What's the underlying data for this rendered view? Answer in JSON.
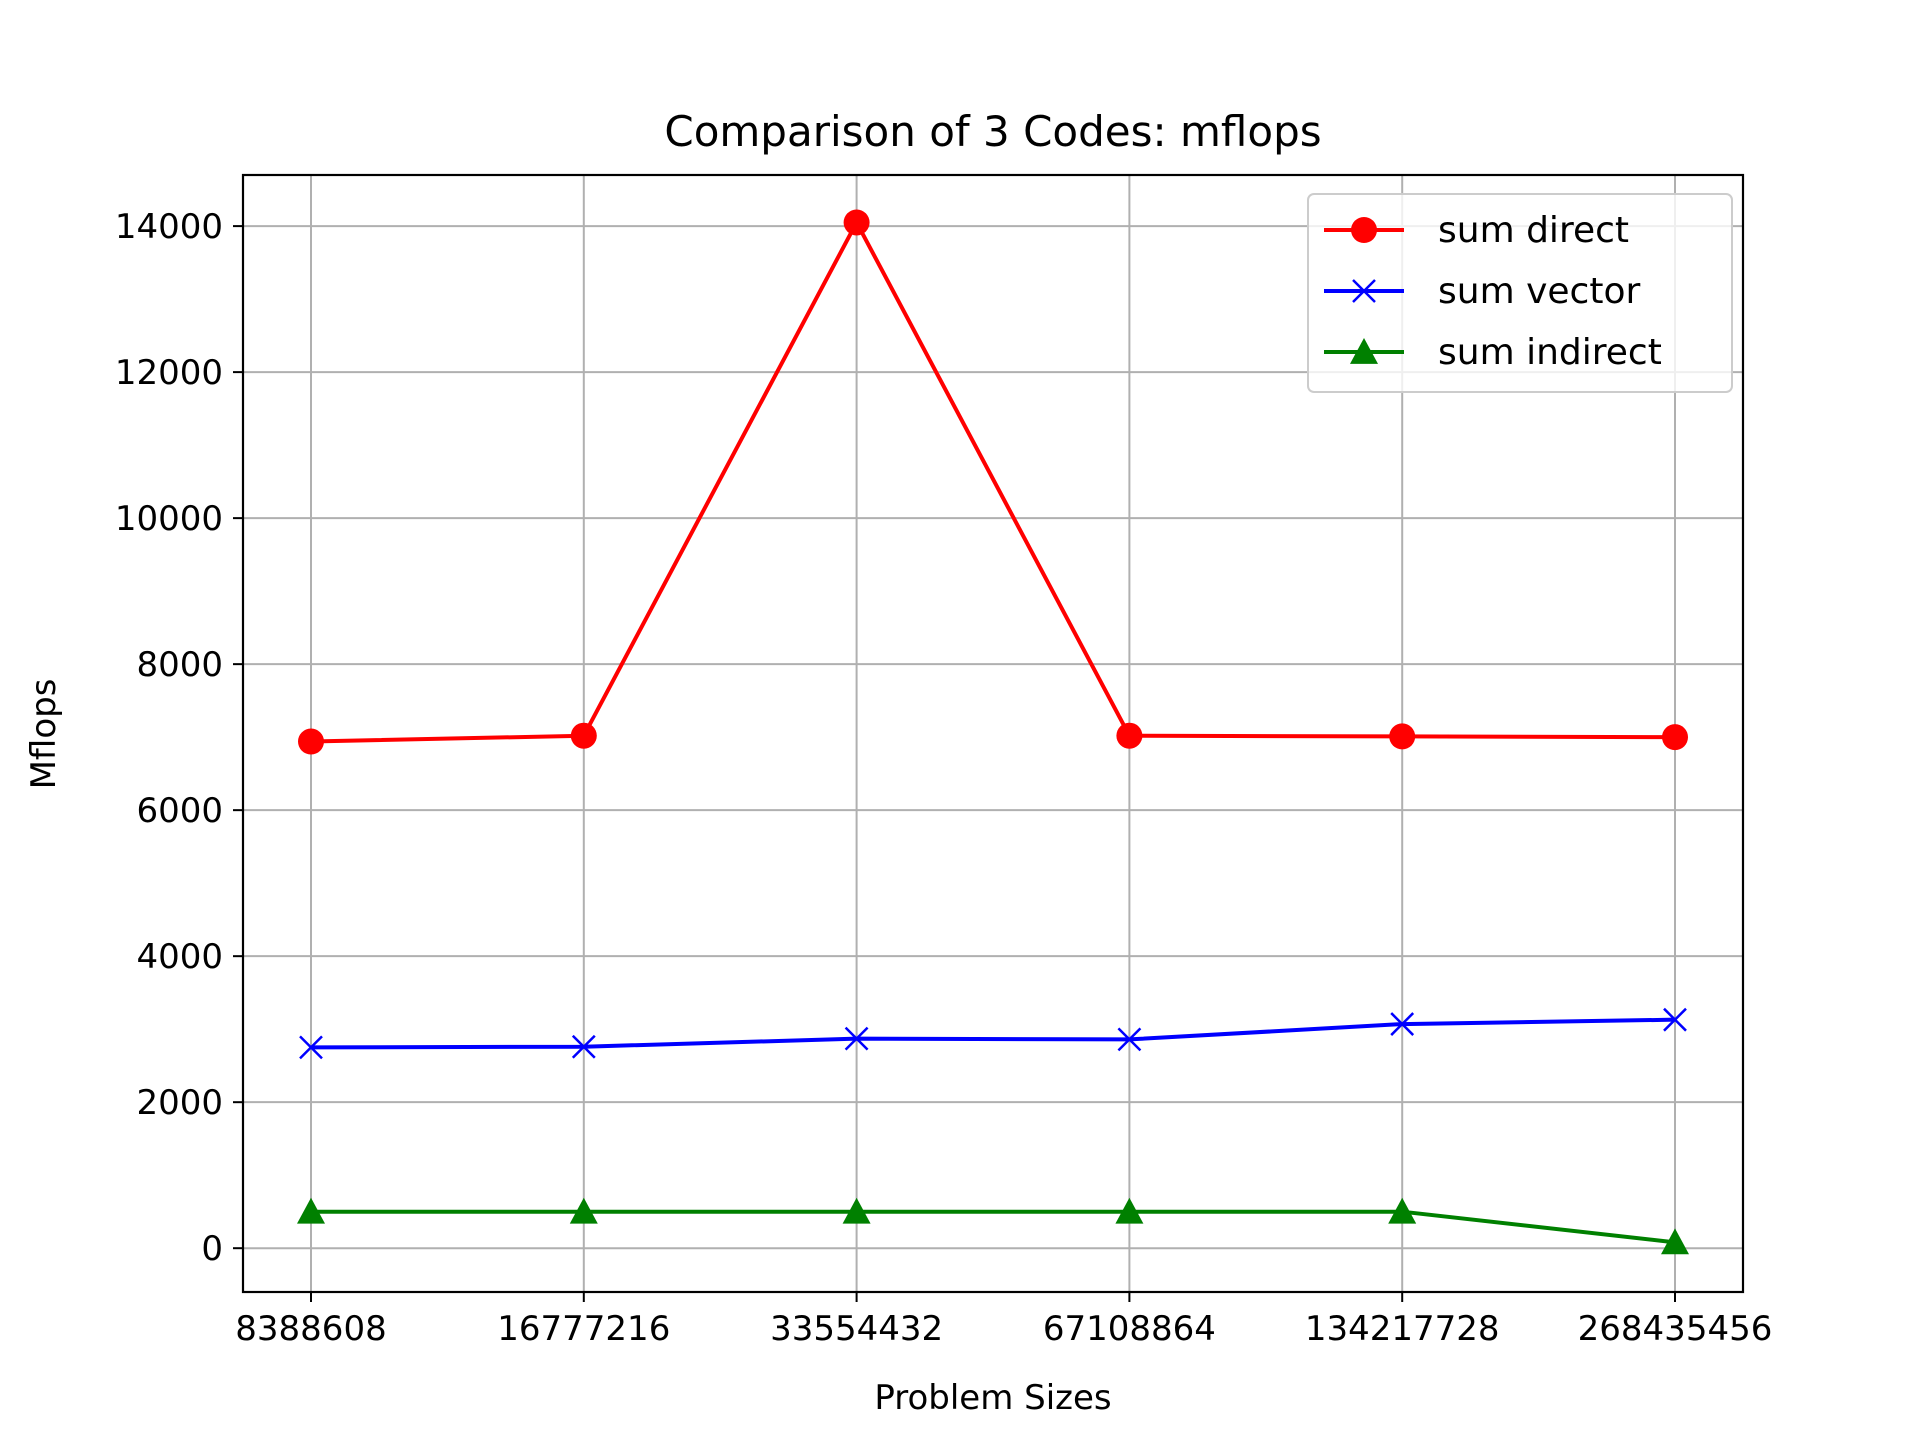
{
  "chart_data": {
    "type": "line",
    "title": "Comparison of 3 Codes: mflops",
    "xlabel": "Problem Sizes",
    "ylabel": "Mflops",
    "categories": [
      "8388608",
      "16777216",
      "33554432",
      "67108864",
      "134217728",
      "268435456"
    ],
    "yticks": [
      "0",
      "2000",
      "4000",
      "6000",
      "8000",
      "10000",
      "12000",
      "14000"
    ],
    "ylim": [
      -600,
      14700
    ],
    "grid": true,
    "legend_position": "top-right",
    "series": [
      {
        "name": "sum direct",
        "color": "#ff0000",
        "marker": "circle",
        "values": [
          6940,
          7020,
          14050,
          7020,
          7010,
          7000
        ]
      },
      {
        "name": "sum vector",
        "color": "#0000ff",
        "marker": "x",
        "values": [
          2750,
          2760,
          2870,
          2860,
          3070,
          3130
        ]
      },
      {
        "name": "sum indirect",
        "color": "#008000",
        "marker": "triangle",
        "values": [
          500,
          500,
          500,
          500,
          500,
          80
        ]
      }
    ]
  }
}
